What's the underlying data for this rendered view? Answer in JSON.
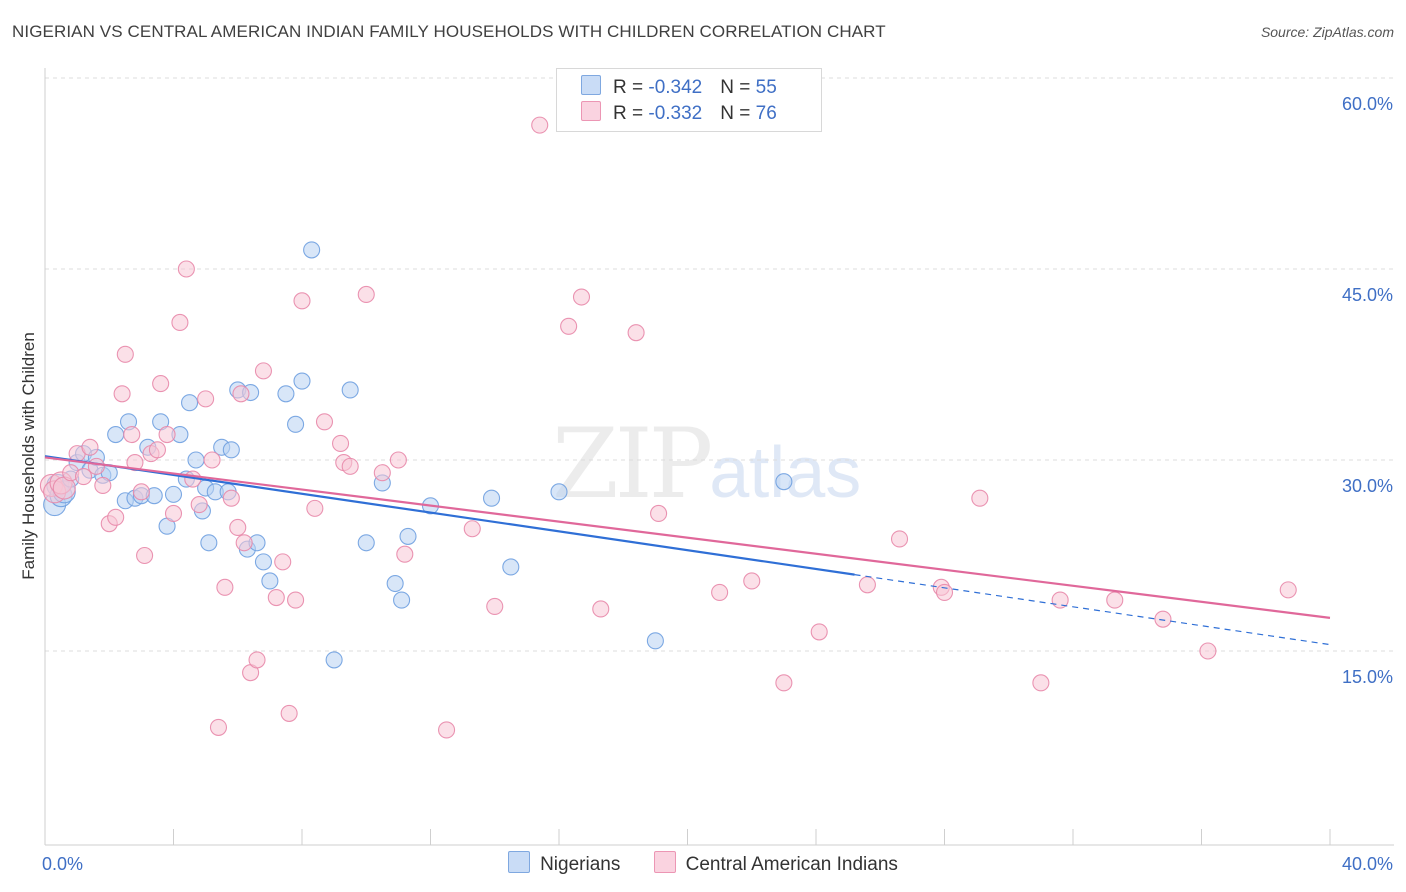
{
  "title": "NIGERIAN VS CENTRAL AMERICAN INDIAN FAMILY HOUSEHOLDS WITH CHILDREN CORRELATION CHART",
  "source": "Source: ZipAtlas.com",
  "watermark": {
    "zip": "ZIP",
    "atlas": "atlas"
  },
  "legend": {
    "rows": [
      {
        "r_label": "R = ",
        "r_value": "-0.342",
        "n_label": "N = ",
        "n_value": "55",
        "color": "#a9c8f0"
      },
      {
        "r_label": "R = ",
        "r_value": "-0.332",
        "n_label": "N = ",
        "n_value": "76",
        "color": "#f6b8cc"
      }
    ]
  },
  "bottom_legend": [
    {
      "label": "Nigerians",
      "color": "#b8d2f3"
    },
    {
      "label": "Central American Indians",
      "color": "#f8c6d6"
    }
  ],
  "chart_data": {
    "type": "scatter",
    "title": "NIGERIAN VS CENTRAL AMERICAN INDIAN FAMILY HOUSEHOLDS WITH CHILDREN CORRELATION CHART",
    "xlabel": "",
    "ylabel": "Family Households with Children",
    "xlim": [
      0,
      40
    ],
    "ylim": [
      0,
      60
    ],
    "x_tick_labels": [
      "0.0%",
      "40.0%"
    ],
    "y_ticks": [
      15,
      30,
      45,
      60
    ],
    "y_tick_labels": [
      "15.0%",
      "30.0%",
      "45.0%",
      "60.0%"
    ],
    "grid": true,
    "legend_position": "top-center",
    "series": [
      {
        "name": "Nigerians",
        "color": "#6fa0e0",
        "fill": "#b8d2f3",
        "x": [
          0.3,
          0.4,
          0.5,
          0.6,
          0.8,
          1.0,
          1.2,
          1.4,
          1.6,
          1.8,
          2.0,
          2.2,
          2.5,
          2.6,
          2.8,
          3.0,
          3.2,
          3.4,
          3.6,
          3.8,
          4.0,
          4.2,
          4.4,
          4.5,
          4.7,
          4.9,
          5.0,
          5.1,
          5.3,
          5.5,
          5.7,
          5.8,
          6.0,
          6.3,
          6.4,
          6.6,
          6.8,
          7.0,
          7.5,
          7.8,
          8.0,
          8.3,
          9.0,
          9.5,
          10.0,
          10.5,
          10.9,
          11.1,
          11.3,
          12.0,
          13.9,
          14.5,
          16.0,
          19.0,
          23.0
        ],
        "y": [
          26.5,
          28.0,
          27.2,
          27.5,
          28.5,
          29.8,
          30.5,
          29.2,
          30.2,
          28.8,
          29.0,
          32.0,
          26.8,
          33.0,
          27.0,
          27.2,
          31.0,
          27.2,
          33.0,
          24.8,
          27.3,
          32.0,
          28.5,
          34.5,
          30.0,
          26.0,
          27.8,
          23.5,
          27.5,
          31.0,
          27.5,
          30.8,
          35.5,
          23.0,
          35.3,
          23.5,
          22.0,
          20.5,
          35.2,
          32.8,
          36.2,
          46.5,
          14.3,
          35.5,
          23.5,
          28.2,
          20.3,
          19.0,
          24.0,
          26.4,
          27.0,
          21.6,
          27.5,
          15.8,
          28.3
        ],
        "trend": {
          "x": [
            0.0,
            25.2
          ],
          "y": [
            30.3,
            21.0
          ],
          "dash_x": [
            25.2,
            40.0
          ],
          "dash_y": [
            21.0,
            15.5
          ]
        }
      },
      {
        "name": "Central American Indians",
        "color": "#e888aa",
        "fill": "#f8c6d6",
        "x": [
          0.2,
          0.3,
          0.5,
          0.6,
          0.8,
          1.0,
          1.2,
          1.4,
          1.6,
          1.8,
          2.0,
          2.2,
          2.4,
          2.5,
          2.7,
          2.8,
          3.0,
          3.1,
          3.3,
          3.5,
          3.6,
          3.8,
          4.0,
          4.2,
          4.4,
          4.6,
          4.8,
          5.0,
          5.2,
          5.4,
          5.6,
          5.8,
          6.0,
          6.1,
          6.2,
          6.4,
          6.6,
          6.8,
          7.2,
          7.4,
          7.6,
          7.8,
          8.0,
          8.4,
          8.7,
          9.2,
          9.3,
          9.5,
          10.0,
          10.5,
          11.0,
          11.2,
          12.5,
          13.3,
          14.0,
          15.4,
          16.3,
          16.7,
          17.3,
          18.4,
          19.1,
          21.0,
          22.0,
          23.0,
          24.1,
          25.6,
          26.6,
          27.9,
          28.0,
          29.1,
          31.6,
          31.0,
          33.3,
          34.8,
          36.2,
          38.7
        ],
        "y": [
          28.0,
          27.5,
          28.2,
          27.8,
          29.0,
          30.5,
          28.7,
          31.0,
          29.5,
          28.0,
          25.0,
          25.5,
          35.2,
          38.3,
          32.0,
          29.8,
          27.5,
          22.5,
          30.5,
          30.8,
          36.0,
          32.0,
          25.8,
          40.8,
          45.0,
          28.5,
          26.5,
          34.8,
          30.0,
          9.0,
          20.0,
          27.0,
          24.7,
          35.2,
          23.5,
          13.3,
          14.3,
          37.0,
          19.2,
          22.0,
          10.1,
          19.0,
          42.5,
          26.2,
          33.0,
          31.3,
          29.8,
          29.5,
          43.0,
          29.0,
          30.0,
          22.6,
          8.8,
          24.6,
          18.5,
          56.3,
          40.5,
          42.8,
          18.3,
          40.0,
          25.8,
          19.6,
          20.5,
          12.5,
          16.5,
          20.2,
          23.8,
          20.0,
          19.6,
          27.0,
          19.0,
          12.5,
          19.0,
          17.5,
          15.0,
          19.8
        ],
        "trend": {
          "x": [
            0.0,
            40.0
          ],
          "y": [
            30.2,
            17.6
          ]
        }
      }
    ]
  }
}
